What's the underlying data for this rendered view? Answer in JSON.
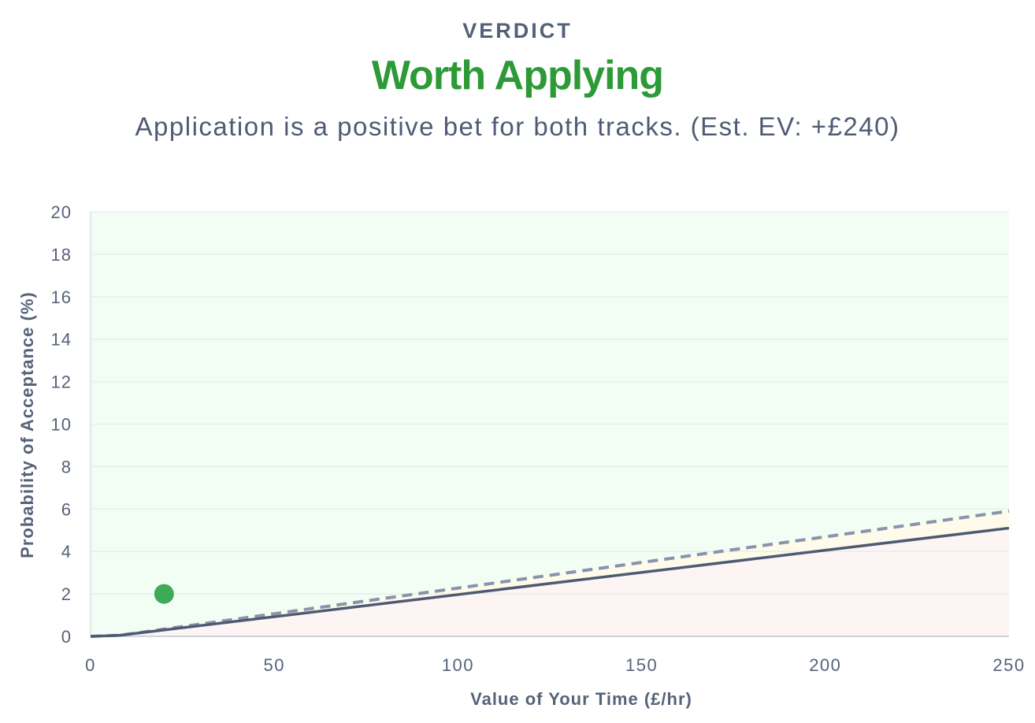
{
  "header": {
    "eyebrow": "VERDICT",
    "verdict": "Worth Applying",
    "summary": "Application is a positive bet for both tracks. (Est. EV: +£240)"
  },
  "colors": {
    "verdict_green": "#2e9a37",
    "point_green": "#3daa57",
    "positive_zone": "#f2fdf4",
    "marginal_zone": "#fefbea",
    "negative_zone": "#fdf4f4",
    "threshold_solid": "#4e5a74",
    "threshold_dashed": "#8a93ab",
    "grid": "#e8efec",
    "axis_text": "#56627a"
  },
  "chart_data": {
    "type": "line",
    "xlabel": "Value of Your Time (£/hr)",
    "ylabel": "Probability of Acceptance (%)",
    "xlim": [
      0,
      250
    ],
    "ylim": [
      0,
      20
    ],
    "x_ticks": [
      "0",
      "50",
      "100",
      "150",
      "200",
      "250"
    ],
    "y_ticks": [
      "0",
      "2",
      "4",
      "6",
      "8",
      "10",
      "12",
      "14",
      "16",
      "18",
      "20"
    ],
    "grid": true,
    "series": [
      {
        "style": "solid",
        "x": [
          0,
          8,
          250
        ],
        "y": [
          0,
          0.05,
          5.1
        ]
      },
      {
        "style": "dashed",
        "x": [
          0,
          8,
          250
        ],
        "y": [
          0,
          0.05,
          5.9
        ]
      }
    ],
    "regions": [
      {
        "fill": "positive",
        "description": "above dashed line"
      },
      {
        "fill": "marginal",
        "description": "between dashed and solid lines"
      },
      {
        "fill": "negative",
        "description": "below solid line"
      }
    ],
    "points": [
      {
        "x": 20,
        "y": 2
      }
    ]
  }
}
